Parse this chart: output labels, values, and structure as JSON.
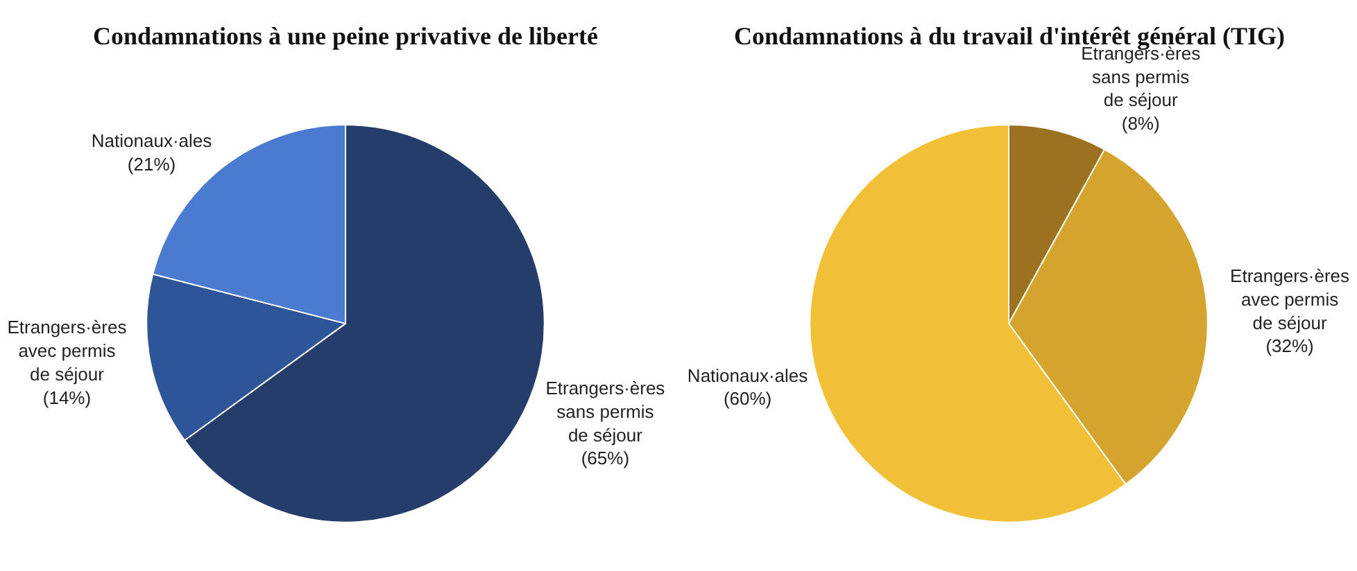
{
  "chart_data": [
    {
      "type": "pie",
      "title": "Condamnations à une peine privative de liberté",
      "categories": [
        "Etrangers·ères sans permis de séjour",
        "Etrangers·ères avec permis de séjour",
        "Nationaux·ales"
      ],
      "values": [
        65,
        14,
        21
      ],
      "value_labels": [
        "(65%)",
        "(14%)",
        "(21%)"
      ],
      "colors": [
        "#253d6b",
        "#2e5597",
        "#4a7bd0"
      ]
    },
    {
      "type": "pie",
      "title": "Condamnations à du travail d'intérêt général (TIG)",
      "categories": [
        "Etrangers·ères sans permis de séjour",
        "Etrangers·ères avec permis de séjour",
        "Nationaux·ales"
      ],
      "values": [
        8,
        32,
        60
      ],
      "value_labels": [
        "(8%)",
        "(32%)",
        "(60%)"
      ],
      "colors": [
        "#9c7220",
        "#d4a42e",
        "#f2c037"
      ]
    }
  ]
}
